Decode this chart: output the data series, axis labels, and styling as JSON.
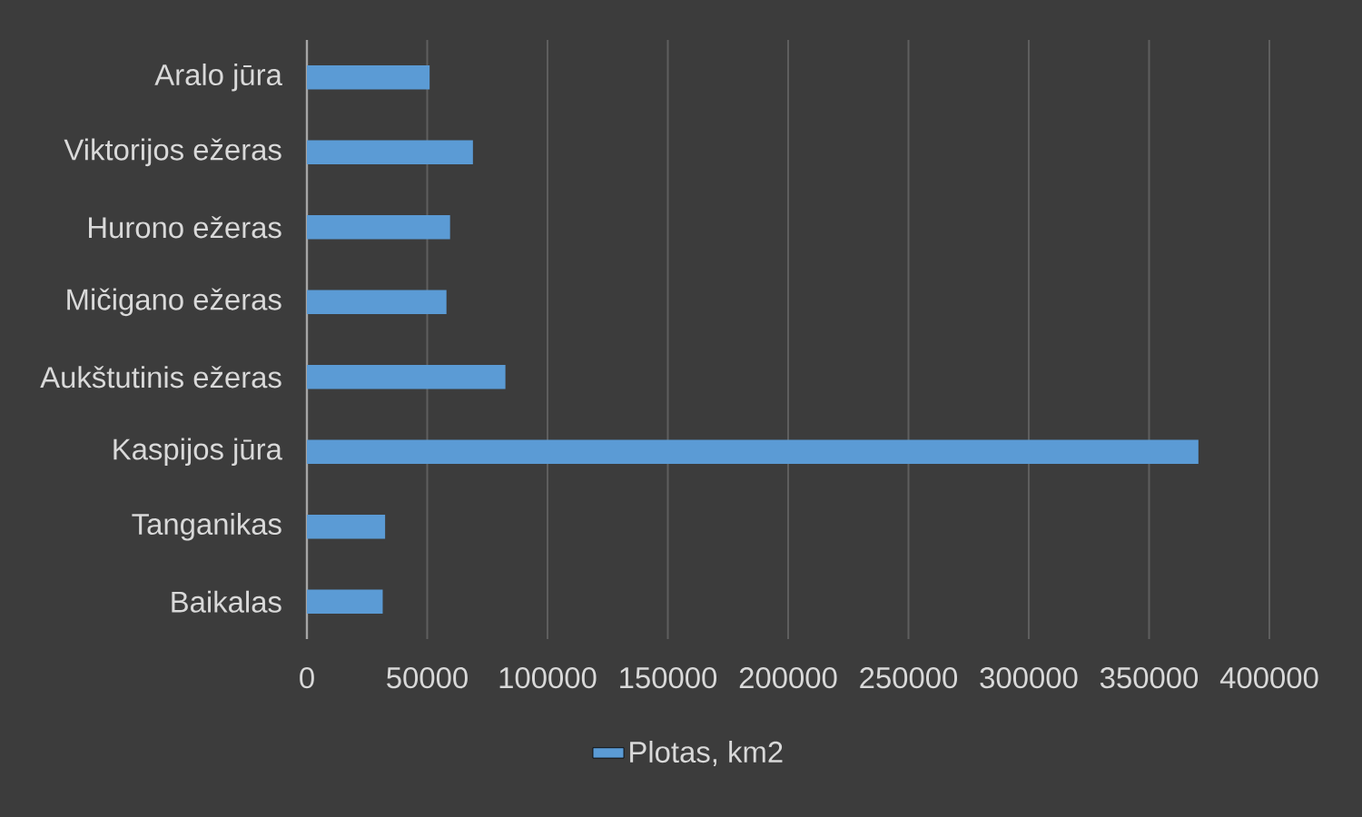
{
  "chart_data": {
    "type": "bar",
    "orientation": "horizontal",
    "categories": [
      "Aralo jūra",
      "Viktorijos ežeras",
      "Hurono ežeras",
      "Mičigano ežeras",
      "Aukštutinis ežeras",
      "Kaspijos jūra",
      "Tanganikas",
      "Baikalas"
    ],
    "series": [
      {
        "name": "Plotas, km2",
        "color": "#5b9bd5",
        "values": [
          51000,
          69000,
          59500,
          58000,
          82500,
          370500,
          32500,
          31500
        ]
      }
    ],
    "xlim": [
      0,
      400000
    ],
    "xticks": [
      0,
      50000,
      100000,
      150000,
      200000,
      250000,
      300000,
      350000,
      400000
    ],
    "grid": "x",
    "legend": "bottom"
  }
}
